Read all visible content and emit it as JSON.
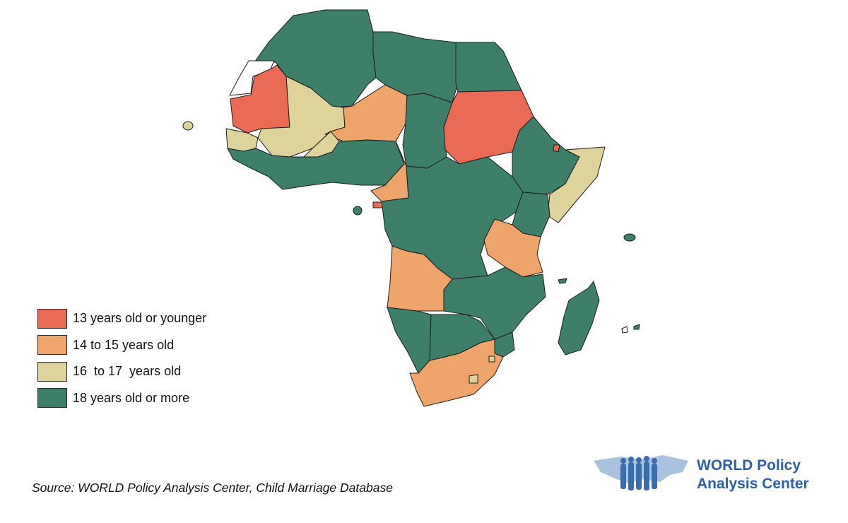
{
  "colors": {
    "cat_13_or_younger": "#ea6b55",
    "cat_14_to_15": "#eea46a",
    "cat_16_to_17": "#dfd39c",
    "cat_18_or_more": "#3e7f69",
    "no_data": "#ffffff"
  },
  "legend": [
    {
      "label": "13 years old or younger",
      "color": "#ea6b55"
    },
    {
      "label": "14 to 15 years old",
      "color": "#eea46a"
    },
    {
      "label": "16  to 17  years old",
      "color": "#dfd39c"
    },
    {
      "label": "18 years old or more",
      "color": "#3e7f69"
    }
  ],
  "source": "Source: WORLD Policy Analysis Center, Child Marriage Database",
  "logo": {
    "line1": "WORLD Policy",
    "line2": "Analysis Center",
    "color": "#2d5fa8",
    "icon": "world-map-people-icon"
  }
}
